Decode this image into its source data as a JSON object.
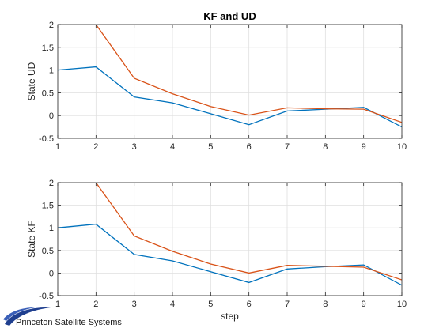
{
  "chart_data": [
    {
      "type": "line",
      "title": "KF and UD",
      "xlabel": "",
      "ylabel": "State UD",
      "xlim": [
        1,
        10
      ],
      "ylim": [
        -0.5,
        2
      ],
      "xticks": [
        1,
        2,
        3,
        4,
        5,
        6,
        7,
        8,
        9,
        10
      ],
      "yticks": [
        -0.5,
        0,
        0.5,
        1,
        1.5,
        2
      ],
      "ytick_labels": [
        "-0.5",
        "0",
        "0.5",
        "1",
        "1.5",
        "2"
      ],
      "grid": true,
      "x": [
        1,
        2,
        3,
        4,
        5,
        6,
        7,
        8,
        9,
        10
      ],
      "series": [
        {
          "color": "#0072BD",
          "values": [
            1.0,
            1.07,
            0.41,
            0.28,
            0.04,
            -0.2,
            0.1,
            0.14,
            0.18,
            -0.25
          ]
        },
        {
          "color": "#D95319",
          "values": [
            2.0,
            2.0,
            0.82,
            0.48,
            0.2,
            0.01,
            0.17,
            0.15,
            0.14,
            -0.15
          ]
        }
      ]
    },
    {
      "type": "line",
      "title": "",
      "xlabel": "step",
      "ylabel": "State KF",
      "xlim": [
        1,
        10
      ],
      "ylim": [
        -0.5,
        2
      ],
      "xticks": [
        1,
        2,
        3,
        4,
        5,
        6,
        7,
        8,
        9,
        10
      ],
      "yticks": [
        -0.5,
        0,
        0.5,
        1,
        1.5,
        2
      ],
      "ytick_labels": [
        "-0.5",
        "0",
        "0.5",
        "1",
        "1.5",
        "2"
      ],
      "grid": true,
      "x": [
        1,
        2,
        3,
        4,
        5,
        6,
        7,
        8,
        9,
        10
      ],
      "series": [
        {
          "color": "#0072BD",
          "values": [
            1.0,
            1.08,
            0.41,
            0.27,
            0.03,
            -0.21,
            0.09,
            0.14,
            0.18,
            -0.27
          ]
        },
        {
          "color": "#D95319",
          "values": [
            2.0,
            2.0,
            0.82,
            0.48,
            0.2,
            0.0,
            0.17,
            0.15,
            0.13,
            -0.15
          ]
        }
      ]
    }
  ],
  "logo": {
    "text": "Princeton Satellite Systems",
    "icon": "swoosh-logo-icon",
    "color": "#1f3f8f"
  }
}
